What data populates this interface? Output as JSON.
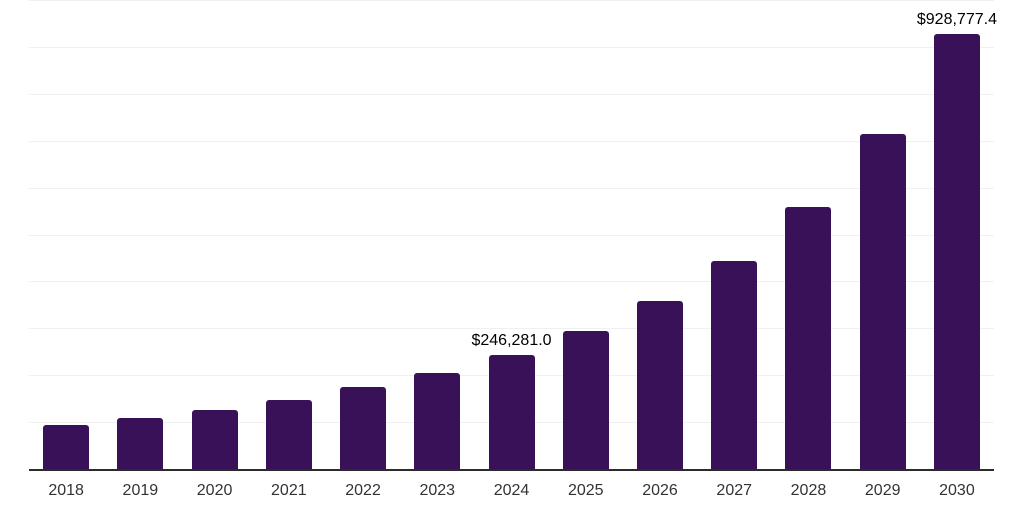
{
  "chart_data": {
    "type": "bar",
    "title": "",
    "xlabel": "",
    "ylabel": "",
    "categories": [
      "2018",
      "2019",
      "2020",
      "2021",
      "2022",
      "2023",
      "2024",
      "2025",
      "2026",
      "2027",
      "2028",
      "2029",
      "2030"
    ],
    "values": [
      96000,
      110200,
      128000,
      148500,
      176000,
      207500,
      246281.0,
      296500,
      360500,
      446000,
      560500,
      717000,
      928777.4
    ],
    "value_labels": [
      {
        "year": "2024",
        "text": "$246,281.0"
      },
      {
        "year": "2030",
        "text": "$928,777.4"
      }
    ],
    "ylim": [
      0,
      1000000
    ],
    "grid_step": 100000,
    "grid": "on",
    "y_tick_labels_visible": false,
    "legend": "none",
    "bar_color": "#381158",
    "gridline_color": "#f0f0f0",
    "axis_line_color": "#2b2b2b",
    "tick_label_color": "#333333",
    "value_label_color": "#000000"
  }
}
